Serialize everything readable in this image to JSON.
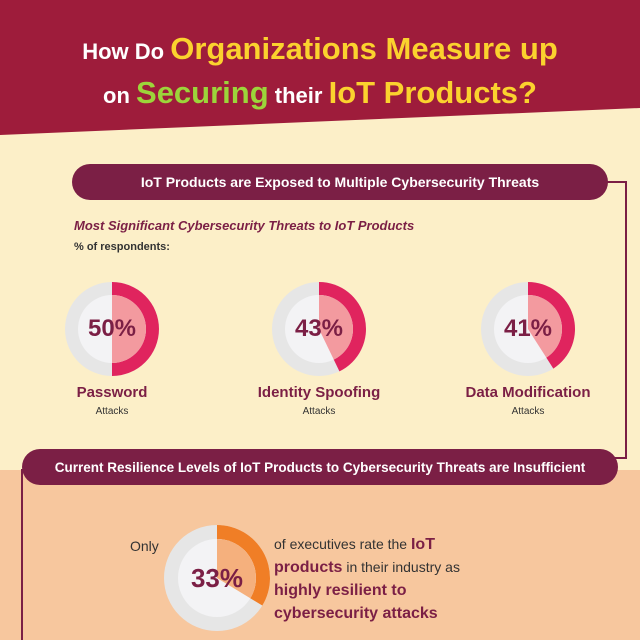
{
  "header": {
    "title_part1": "How Do ",
    "title_part2": "Organizations Measure up",
    "title_part3": "on ",
    "title_part4": "Securing",
    "title_part5": " their ",
    "title_part6": "IoT Products?",
    "bg_color": "#9e1c3b"
  },
  "section1": {
    "banner": "IoT Products are Exposed to Multiple Cybersecurity Threats",
    "subhead": "Most Significant Cybersecurity Threats to IoT Products",
    "note": "% of respondents:",
    "threats": [
      {
        "pct_label": "50%",
        "value": 50,
        "label": "Password",
        "sub": "Attacks"
      },
      {
        "pct_label": "43%",
        "value": 43,
        "label": "Identity Spoofing",
        "sub": "Attacks"
      },
      {
        "pct_label": "41%",
        "value": 41,
        "label": "Data Modification",
        "sub": "Attacks"
      }
    ],
    "accent_color": "#e0245e"
  },
  "section2": {
    "banner": "Current Resilience Levels of IoT Products to Cybersecurity Threats are Insufficient",
    "only": "Only",
    "pct_label": "33%",
    "value": 33,
    "s1": "of executives rate the ",
    "s2": "IoT",
    "s3": "products",
    "s4": " in their industry as ",
    "s5": "highly resilient to",
    "s6": "cybersecurity attacks",
    "accent_color": "#f07e26"
  }
}
